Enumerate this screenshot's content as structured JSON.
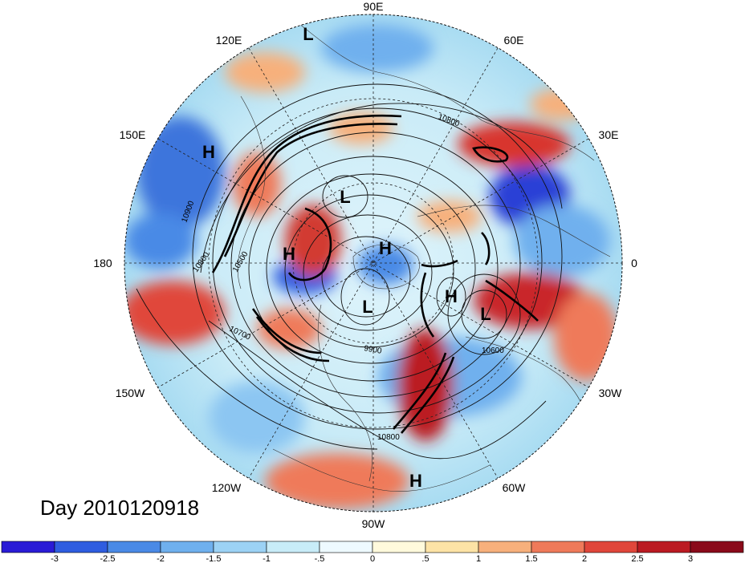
{
  "day_label": "Day 2010120918",
  "longitude_labels": [
    "90E",
    "60E",
    "30E",
    "0",
    "30W",
    "60W",
    "90W",
    "120W",
    "150W",
    "180",
    "150E",
    "120E"
  ],
  "pressure_centers": [
    {
      "type": "L",
      "name": "low-north"
    },
    {
      "type": "H",
      "name": "high-150e"
    },
    {
      "type": "L",
      "name": "low-siberia"
    },
    {
      "type": "H",
      "name": "high-pole"
    },
    {
      "type": "H",
      "name": "high-bering"
    },
    {
      "type": "L",
      "name": "low-canada"
    },
    {
      "type": "H",
      "name": "high-greenland"
    },
    {
      "type": "L",
      "name": "low-atlantic"
    },
    {
      "type": "H",
      "name": "high-caribbean"
    }
  ],
  "contour_labels": [
    "10800",
    "10900",
    "10800",
    "10500",
    "10700",
    "9900",
    "10600",
    "10800"
  ],
  "colorbar": {
    "ticks": [
      "-3",
      "-2.5",
      "-2",
      "-1.5",
      "-1",
      "-.5",
      "0",
      ".5",
      "1",
      "1.5",
      "2",
      "2.5",
      "3"
    ],
    "colors": [
      "#2a1bd6",
      "#2f5de0",
      "#4a8ae6",
      "#6fb0ee",
      "#9cd2f5",
      "#c8ecf8",
      "#eefaff",
      "#fffadc",
      "#fde3a6",
      "#f7b07c",
      "#ef7a5a",
      "#e0463a",
      "#bb1a22",
      "#8a0a1a"
    ]
  }
}
